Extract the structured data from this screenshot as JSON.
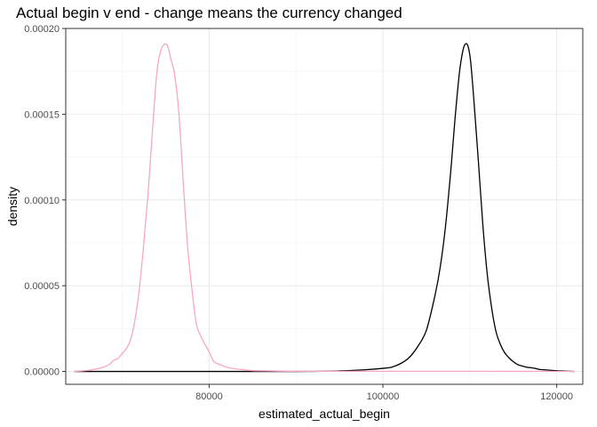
{
  "chart_data": {
    "type": "line",
    "title": "Actual begin v end - change means the currency changed",
    "xlabel": "estimated_actual_begin",
    "ylabel": "density",
    "xlim": [
      63500,
      123000
    ],
    "ylim": [
      -7.5e-06,
      0.0002
    ],
    "x_ticks": [
      {
        "value": 80000,
        "label": "80000"
      },
      {
        "value": 100000,
        "label": "100000"
      },
      {
        "value": 120000,
        "label": "120000"
      }
    ],
    "x_minor_ticks": [
      70000,
      90000,
      110000
    ],
    "y_ticks": [
      {
        "value": 0,
        "label": "0.00000"
      },
      {
        "value": 5e-05,
        "label": "0.00005"
      },
      {
        "value": 0.0001,
        "label": "0.00010"
      },
      {
        "value": 0.00015,
        "label": "0.00015"
      },
      {
        "value": 0.0002,
        "label": "0.00020"
      }
    ],
    "y_minor_ticks": [
      2.5e-05,
      7.5e-05,
      0.000125,
      0.000175
    ],
    "grid": true,
    "legend": "none",
    "colors": {
      "panel_border": "#333333",
      "grid_major": "#ebebeb",
      "grid_minor": "#f5f5f5",
      "tick": "#333333"
    },
    "series": [
      {
        "color": "#000000",
        "x": [
          64500,
          80000,
          90000,
          95000,
          98000,
          100000,
          101000,
          102000,
          103000,
          104000,
          105000,
          106000,
          106600,
          107200,
          107800,
          108300,
          108800,
          109200,
          109500,
          109800,
          110100,
          110500,
          111000,
          111500,
          112000,
          112500,
          113000,
          113500,
          114000,
          114500,
          115000,
          115500,
          116000,
          116500,
          117000,
          117500,
          118000,
          119000,
          120000,
          122000
        ],
        "y": [
          0,
          0,
          0,
          3e-07,
          1e-06,
          1.8e-06,
          2.5e-06,
          4.5e-06,
          8e-06,
          1.45e-05,
          2.4e-05,
          4.45e-05,
          6.1e-05,
          8.45e-05,
          0.0001165,
          0.0001475,
          0.000174,
          0.000187,
          0.000191,
          0.0001895,
          0.0001805,
          0.000156,
          0.0001215,
          8.55e-05,
          5.7e-05,
          3.75e-05,
          2.35e-05,
          1.6e-05,
          1.1e-05,
          8e-06,
          5.7e-06,
          4e-06,
          3.2e-06,
          2.5e-06,
          2.2e-06,
          1.8e-06,
          1.2e-06,
          8e-07,
          4e-07,
          0
        ]
      },
      {
        "color": "#f7a6c8",
        "x": [
          64500,
          66000,
          67500,
          68500,
          69000,
          69500,
          70000,
          70500,
          71000,
          71500,
          72000,
          72500,
          73000,
          73500,
          74000,
          74500,
          75000,
          75300,
          75600,
          76000,
          76500,
          77000,
          77500,
          78000,
          78500,
          79000,
          79500,
          80000,
          80500,
          81000,
          81500,
          82000,
          83000,
          84000,
          85000,
          87000,
          90000,
          100000,
          110000,
          122000
        ],
        "y": [
          0,
          6e-07,
          2e-06,
          4e-06,
          6.5e-06,
          7.5e-06,
          1.05e-05,
          1.35e-05,
          1.9e-05,
          3.1e-05,
          4.95e-05,
          7.55e-05,
          0.0001055,
          0.000142,
          0.000175,
          0.000188,
          0.000191,
          0.0001885,
          0.000182,
          0.000174,
          0.000152,
          0.000112,
          7.45e-05,
          4.9e-05,
          2.85e-05,
          2.1e-05,
          1.6e-05,
          1.15e-05,
          6e-06,
          4.5e-06,
          3.5e-06,
          2.5e-06,
          1.5e-06,
          1e-06,
          5e-07,
          3e-07,
          1e-07,
          1e-07,
          1e-07,
          0
        ]
      }
    ]
  }
}
